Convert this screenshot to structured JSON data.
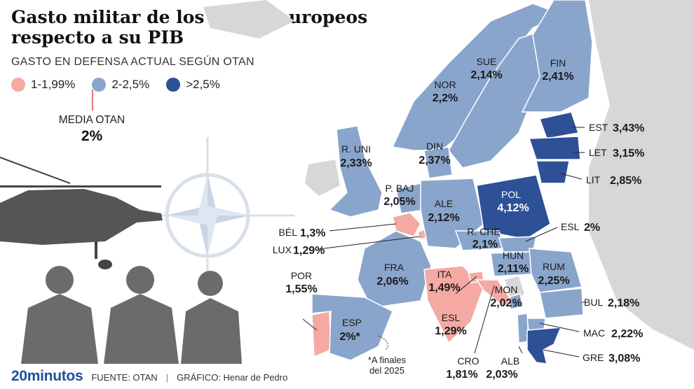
{
  "title": "Gasto militar de los países europeos respecto a su PIB",
  "subtitle": "GASTO EN DEFENSA ACTUAL SEGÚN OTAN",
  "legend": {
    "items": [
      {
        "label": "1-1,99%",
        "color": "#f4a9a3"
      },
      {
        "label": "2-2,5%",
        "color": "#8aa5cc"
      },
      {
        "label": ">2,5%",
        "color": "#2d5096"
      }
    ]
  },
  "average": {
    "label": "MEDIA OTAN",
    "value": "2%"
  },
  "colors": {
    "low": "#f4a9a3",
    "mid": "#8aa5cc",
    "high": "#2d5096",
    "nonmember": "#d7d7d7",
    "sea": "#ffffff",
    "border": "#ffffff"
  },
  "countries": [
    {
      "id": "nor",
      "name": "NOR",
      "value": "2,2%",
      "class": "mid"
    },
    {
      "id": "sue",
      "name": "SUE",
      "value": "2,14%",
      "class": "mid"
    },
    {
      "id": "fin",
      "name": "FIN",
      "value": "2,41%",
      "class": "mid"
    },
    {
      "id": "est",
      "name": "EST",
      "value": "3,43%",
      "class": "high"
    },
    {
      "id": "let",
      "name": "LET",
      "value": "3,15%",
      "class": "high"
    },
    {
      "id": "lit",
      "name": "LIT",
      "value": "2,85%",
      "class": "high"
    },
    {
      "id": "runi",
      "name": "R. UNI",
      "value": "2,33%",
      "class": "mid"
    },
    {
      "id": "din",
      "name": "DIN",
      "value": "2,37%",
      "class": "mid"
    },
    {
      "id": "pbaj",
      "name": "P. BAJ",
      "value": "2,05%",
      "class": "mid"
    },
    {
      "id": "ale",
      "name": "ALE",
      "value": "2,12%",
      "class": "mid"
    },
    {
      "id": "pol",
      "name": "POL",
      "value": "4,12%",
      "class": "high"
    },
    {
      "id": "bel",
      "name": "BÉL",
      "value": "1,3%",
      "class": "low"
    },
    {
      "id": "lux",
      "name": "LUX",
      "value": "1,29%",
      "class": "low"
    },
    {
      "id": "rche",
      "name": "R. CHE",
      "value": "2,1%",
      "class": "mid"
    },
    {
      "id": "eslovaquia",
      "name": "ESL",
      "value": "2%",
      "class": "mid"
    },
    {
      "id": "hun",
      "name": "HUN",
      "value": "2,11%",
      "class": "mid"
    },
    {
      "id": "rum",
      "name": "RUM",
      "value": "2,25%",
      "class": "mid"
    },
    {
      "id": "fra",
      "name": "FRA",
      "value": "2,06%",
      "class": "mid"
    },
    {
      "id": "ita",
      "name": "ITA",
      "value": "1,49%",
      "class": "low"
    },
    {
      "id": "mon",
      "name": "MON",
      "value": "2,02%",
      "class": "mid"
    },
    {
      "id": "bul",
      "name": "BUL",
      "value": "2,18%",
      "class": "mid"
    },
    {
      "id": "por",
      "name": "POR",
      "value": "1,55%",
      "class": "low"
    },
    {
      "id": "esp",
      "name": "ESP",
      "value": "2%*",
      "class": "mid"
    },
    {
      "id": "eslovenia",
      "name": "ESL",
      "value": "1,29%",
      "class": "low"
    },
    {
      "id": "mac",
      "name": "MAC",
      "value": "2,22%",
      "class": "mid"
    },
    {
      "id": "cro",
      "name": "CRO",
      "value": "1,81%",
      "class": "low"
    },
    {
      "id": "alb",
      "name": "ALB",
      "value": "2,03%",
      "class": "mid"
    },
    {
      "id": "gre",
      "name": "GRE",
      "value": "3,08%",
      "class": "high"
    }
  ],
  "note": "*A finales del 2025",
  "footer": {
    "brand": "20minutos",
    "source": "FUENTE: OTAN",
    "separator": "|",
    "credit": "GRÁFICO: Henar de Pedro"
  }
}
